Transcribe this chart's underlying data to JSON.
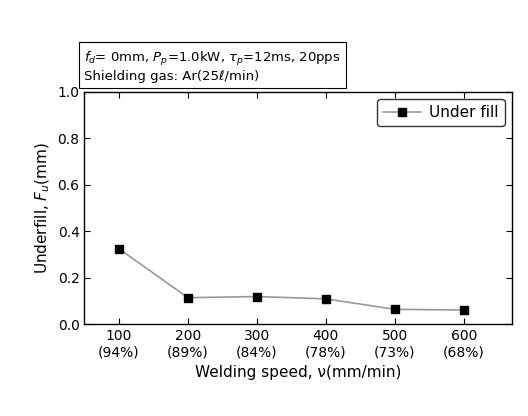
{
  "x_values": [
    100,
    200,
    300,
    400,
    500,
    600
  ],
  "y_values": [
    0.325,
    0.115,
    0.12,
    0.11,
    0.065,
    0.062
  ],
  "x_tick_top": [
    "100",
    "200",
    "300",
    "400",
    "500",
    "600"
  ],
  "x_tick_bot": [
    "(94%)",
    "(89%)",
    "(84%)",
    "(78%)",
    "(73%)",
    "(68%)"
  ],
  "xlabel": "Welding speed, ν(mm/min)",
  "ylim": [
    0.0,
    1.0
  ],
  "yticks": [
    0.0,
    0.2,
    0.4,
    0.6,
    0.8,
    1.0
  ],
  "xlim": [
    50,
    670
  ],
  "annotation_line1": "$f_{d}$= 0mm, $P_{p}$=1.0kW, $\\tau_{p}$=12ms, 20pps",
  "annotation_line2": "Shielding gas: Ar(25ℓ/min)",
  "legend_label": "Under fill",
  "line_color": "#999999",
  "marker_color": "#000000",
  "marker": "s",
  "marker_size": 6,
  "annotation_fontsize": 9.5,
  "axis_fontsize": 11,
  "tick_fontsize": 10,
  "legend_fontsize": 11
}
